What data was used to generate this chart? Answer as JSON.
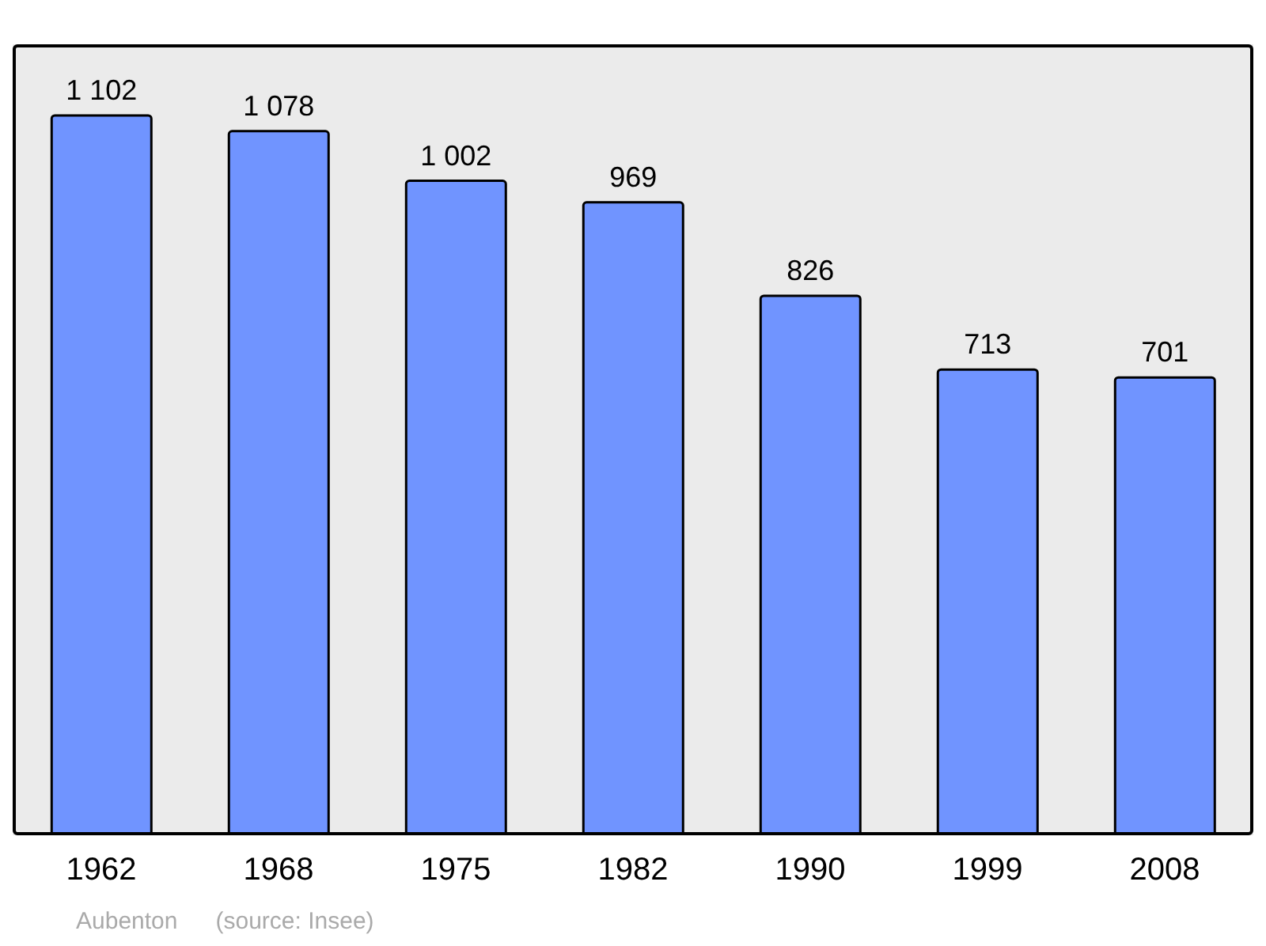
{
  "chart_data": {
    "type": "bar",
    "categories": [
      "1962",
      "1968",
      "1975",
      "1982",
      "1990",
      "1999",
      "2008"
    ],
    "values": [
      1102,
      1078,
      1002,
      969,
      826,
      713,
      701
    ],
    "value_labels": [
      "1 102",
      "1 078",
      "1 002",
      "969",
      "826",
      "713",
      "701"
    ],
    "color": "#7094ff",
    "ylim": [
      0,
      1211
    ],
    "grid": false,
    "annotations": [
      "Aubenton",
      "(source: Insee)"
    ]
  }
}
